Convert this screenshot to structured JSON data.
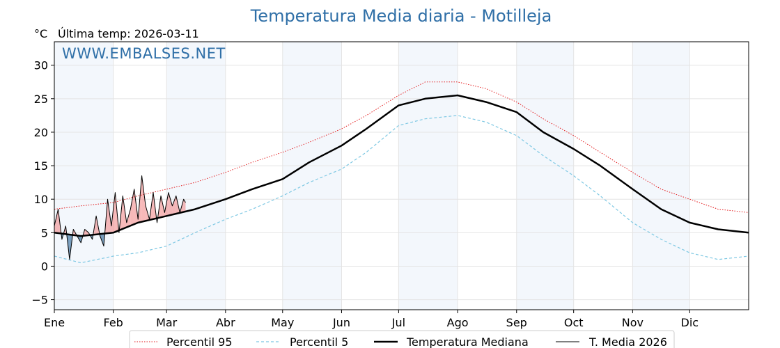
{
  "chart_data": {
    "type": "line",
    "title": "Temperatura Media diaria - Motilleja",
    "unit_label": "°C",
    "last_temp": "Última temp: 2026-03-11",
    "watermark": "WWW.EMBALSES.NET",
    "xlabels": [
      "Ene",
      "Feb",
      "Mar",
      "Abr",
      "May",
      "Jun",
      "Jul",
      "Ago",
      "Sep",
      "Oct",
      "Nov",
      "Dic"
    ],
    "month_start_days": [
      1,
      32,
      60,
      91,
      121,
      152,
      182,
      213,
      244,
      274,
      305,
      335
    ],
    "xlim": [
      1,
      366
    ],
    "ylim": [
      -6.5,
      33.5
    ],
    "yticks": [
      -5,
      0,
      5,
      10,
      15,
      20,
      25,
      30
    ],
    "grid": true,
    "legend_position": "bottom-center",
    "x_unit": "day of year",
    "series": [
      {
        "name": "Percentil 95",
        "color": "#e31a1c",
        "style": "dotted",
        "x": [
          1,
          15,
          32,
          45,
          60,
          75,
          91,
          105,
          121,
          135,
          152,
          165,
          182,
          196,
          213,
          228,
          244,
          258,
          274,
          288,
          305,
          320,
          335,
          350,
          366
        ],
        "values": [
          8.5,
          9.0,
          9.5,
          10.5,
          11.5,
          12.5,
          14.0,
          15.5,
          17.0,
          18.5,
          20.5,
          22.5,
          25.5,
          27.5,
          27.5,
          26.5,
          24.5,
          22.0,
          19.5,
          17.0,
          14.0,
          11.5,
          10.0,
          8.5,
          8.0
        ]
      },
      {
        "name": "Percentil 5",
        "color": "#7ec8e3",
        "style": "dashed",
        "x": [
          1,
          15,
          32,
          45,
          60,
          75,
          91,
          105,
          121,
          135,
          152,
          165,
          182,
          196,
          213,
          228,
          244,
          258,
          274,
          288,
          305,
          320,
          335,
          350,
          366
        ],
        "values": [
          1.5,
          0.5,
          1.5,
          2.0,
          3.0,
          5.0,
          7.0,
          8.5,
          10.5,
          12.5,
          14.5,
          17.0,
          21.0,
          22.0,
          22.5,
          21.5,
          19.5,
          16.5,
          13.5,
          10.5,
          6.5,
          4.0,
          2.0,
          1.0,
          1.5
        ]
      },
      {
        "name": "Temperatura Mediana",
        "color": "#000000",
        "style": "solid-bold",
        "x": [
          1,
          15,
          32,
          45,
          60,
          75,
          91,
          105,
          121,
          135,
          152,
          165,
          182,
          196,
          213,
          228,
          244,
          258,
          274,
          288,
          305,
          320,
          335,
          350,
          366
        ],
        "values": [
          5.0,
          4.5,
          5.0,
          6.5,
          7.5,
          8.5,
          10.0,
          11.5,
          13.0,
          15.5,
          18.0,
          20.5,
          24.0,
          25.0,
          25.5,
          24.5,
          23.0,
          20.0,
          17.5,
          15.0,
          11.5,
          8.5,
          6.5,
          5.5,
          5.0
        ]
      },
      {
        "name": "T. Media 2026",
        "color": "#000000",
        "style": "solid-thin",
        "x": [
          1,
          3,
          5,
          7,
          9,
          11,
          13,
          15,
          17,
          19,
          21,
          23,
          25,
          27,
          29,
          31,
          33,
          35,
          37,
          39,
          41,
          43,
          45,
          47,
          49,
          51,
          53,
          55,
          57,
          59,
          61,
          63,
          65,
          67,
          69,
          70
        ],
        "values": [
          6.0,
          8.5,
          4.0,
          6.0,
          1.0,
          5.5,
          4.5,
          3.5,
          5.5,
          5.0,
          4.0,
          7.5,
          4.5,
          3.0,
          10.0,
          6.0,
          11.0,
          5.0,
          10.5,
          6.5,
          8.5,
          11.5,
          7.0,
          13.5,
          9.0,
          7.0,
          11.0,
          6.5,
          10.5,
          8.0,
          11.0,
          9.0,
          10.5,
          8.0,
          10.0,
          9.5
        ]
      }
    ]
  }
}
